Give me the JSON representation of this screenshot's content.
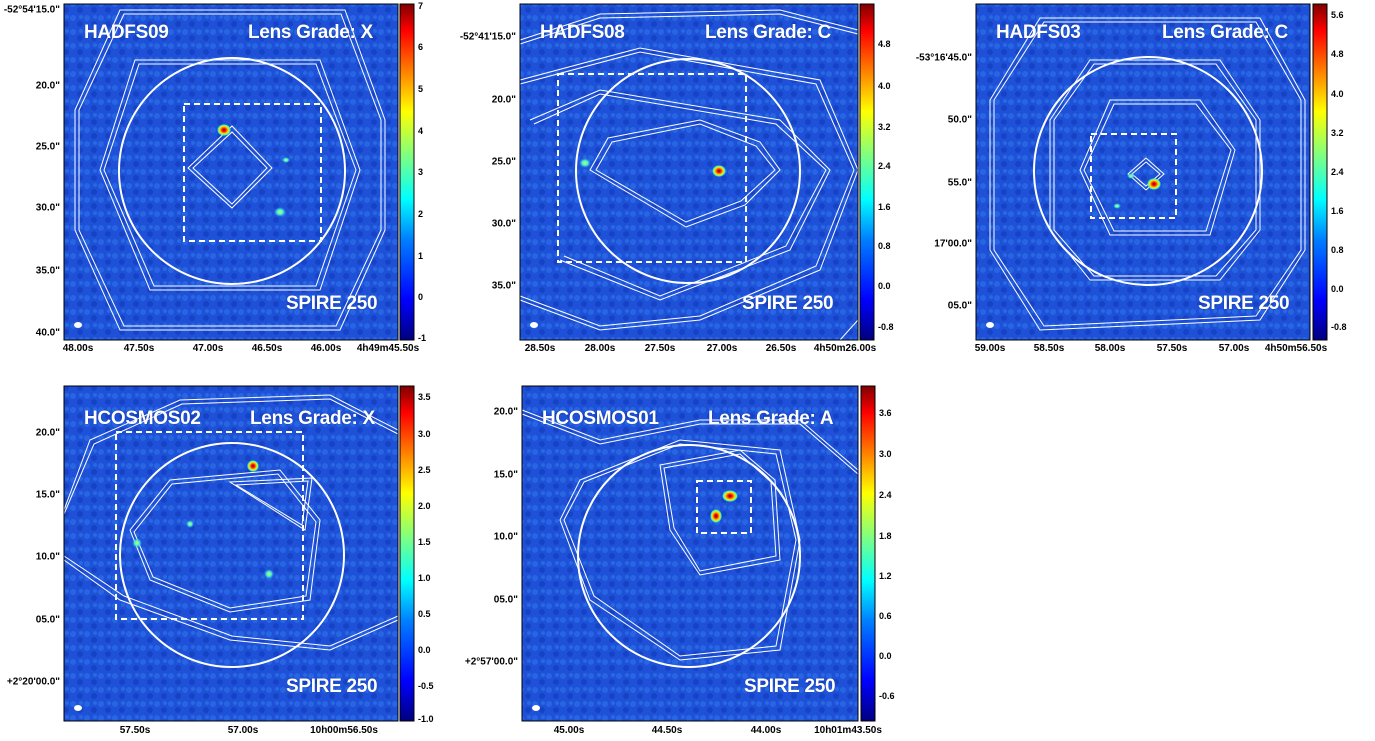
{
  "colors": {
    "map_background": "#1e4fd8",
    "contour": "#ffffff",
    "colorbar_stops": [
      "#00007f",
      "#0000ff",
      "#0080ff",
      "#00ffff",
      "#80ff80",
      "#ffff00",
      "#ff8000",
      "#ff0000",
      "#7f0000"
    ]
  },
  "panels": [
    {
      "id": "hadfs09",
      "name": "HADFS09",
      "grade": "Lens Grade: X",
      "band": "SPIRE 250",
      "y_ticks": [
        "-52°54'15.0\"",
        "20.0\"",
        "25.0\"",
        "30.0\"",
        "35.0\"",
        "40.0\""
      ],
      "x_ticks": [
        "48.00s",
        "47.50s",
        "47.00s",
        "46.50s",
        "46.00s",
        "4h49m45.50s"
      ],
      "colorbar_ticks": [
        "7",
        "6",
        "5",
        "4",
        "3",
        "2",
        "1",
        "0",
        "-1"
      ]
    },
    {
      "id": "hadfs08",
      "name": "HADFS08",
      "grade": "Lens Grade: C",
      "band": "SPIRE 250",
      "y_ticks": [
        "-52°41'15.0\"",
        "20.0\"",
        "25.0\"",
        "30.0\"",
        "35.0\""
      ],
      "x_ticks": [
        "28.50s",
        "28.00s",
        "27.50s",
        "27.00s",
        "26.50s",
        "4h50m26.00s"
      ],
      "colorbar_ticks": [
        "4.8",
        "4.0",
        "3.2",
        "2.4",
        "1.6",
        "0.8",
        "0.0",
        "-0.8"
      ]
    },
    {
      "id": "hadfs03",
      "name": "HADFS03",
      "grade": "Lens Grade: C",
      "band": "SPIRE 250",
      "y_ticks": [
        "-53°16'45.0\"",
        "50.0\"",
        "55.0\"",
        "17'00.0\"",
        "05.0\""
      ],
      "x_ticks": [
        "59.00s",
        "58.50s",
        "58.00s",
        "57.50s",
        "57.00s",
        "4h50m56.50s"
      ],
      "colorbar_ticks": [
        "5.6",
        "4.8",
        "4.0",
        "3.2",
        "2.4",
        "1.6",
        "0.8",
        "0.0",
        "-0.8"
      ]
    },
    {
      "id": "hcosmos02",
      "name": "HCOSMOS02",
      "grade": "Lens Grade: X",
      "band": "SPIRE 250",
      "y_ticks": [
        "20.0\"",
        "15.0\"",
        "10.0\"",
        "05.0\"",
        "+2°20'00.0\""
      ],
      "x_ticks": [
        "57.50s",
        "57.00s",
        "10h00m56.50s"
      ],
      "colorbar_ticks": [
        "3.5",
        "3.0",
        "2.5",
        "2.0",
        "1.5",
        "1.0",
        "0.5",
        "0.0",
        "-0.5",
        "-1.0"
      ]
    },
    {
      "id": "hcosmos01",
      "name": "HCOSMOS01",
      "grade": "Lens Grade: A",
      "band": "SPIRE 250",
      "y_ticks": [
        "20.0\"",
        "15.0\"",
        "10.0\"",
        "05.0\"",
        "+2°57'00.0\""
      ],
      "x_ticks": [
        "45.00s",
        "44.50s",
        "44.00s",
        "10h01m43.50s"
      ],
      "colorbar_ticks": [
        "3.6",
        "3.0",
        "2.4",
        "1.8",
        "1.2",
        "0.6",
        "0.0",
        "-0.6"
      ]
    }
  ]
}
